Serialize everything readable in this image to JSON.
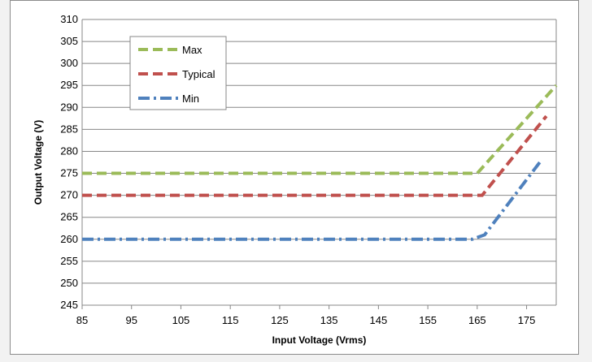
{
  "chart_data": {
    "type": "line",
    "title": "",
    "xlabel": "Input Voltage (Vrms)",
    "ylabel": "Output Voltage (V)",
    "xlim": [
      85,
      181
    ],
    "ylim": [
      245,
      310
    ],
    "x_ticks": [
      85,
      95,
      105,
      115,
      125,
      135,
      145,
      155,
      165,
      175
    ],
    "y_ticks": [
      245,
      250,
      255,
      260,
      265,
      270,
      275,
      280,
      285,
      290,
      295,
      300,
      305,
      310
    ],
    "grid": "horizontal",
    "legend_position": "top-left",
    "series": [
      {
        "name": "Max",
        "color": "#9bbb59",
        "dash": "dash",
        "points": [
          [
            85,
            275
          ],
          [
            165,
            275
          ],
          [
            181,
            295
          ]
        ]
      },
      {
        "name": "Typical",
        "color": "#c0504d",
        "dash": "dash",
        "points": [
          [
            85,
            270
          ],
          [
            166,
            270
          ],
          [
            179,
            288
          ]
        ]
      },
      {
        "name": "Min",
        "color": "#4f81bd",
        "dash": "dash-dot",
        "points": [
          [
            85,
            260
          ],
          [
            164,
            260
          ],
          [
            166.5,
            261
          ],
          [
            178,
            278
          ]
        ]
      }
    ]
  }
}
